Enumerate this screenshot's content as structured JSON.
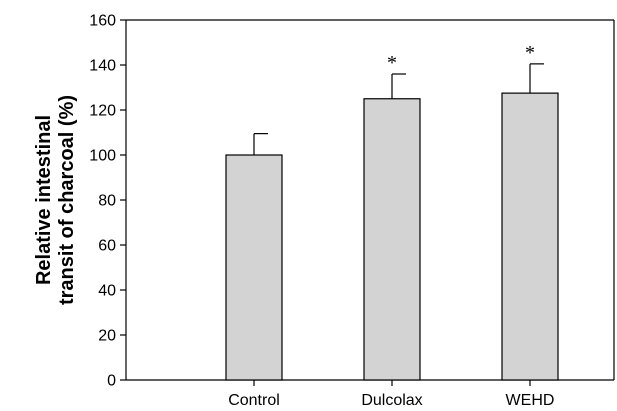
{
  "chart_data": {
    "type": "bar",
    "title": "",
    "xlabel": "",
    "ylabel_lines": [
      "Relative intestinal",
      "transit of charcoal (%)"
    ],
    "categories": [
      "Control",
      "Dulcolax",
      "WEHD"
    ],
    "values": [
      100,
      125,
      127.5
    ],
    "error": [
      9.5,
      11,
      13
    ],
    "annotations": [
      "",
      "*",
      "*"
    ],
    "ylim": [
      0,
      160
    ],
    "yticks": [
      0,
      20,
      40,
      60,
      80,
      100,
      120,
      140,
      160
    ],
    "grid": false,
    "bar_color": "#d3d3d3",
    "edge_color": "#000000"
  }
}
